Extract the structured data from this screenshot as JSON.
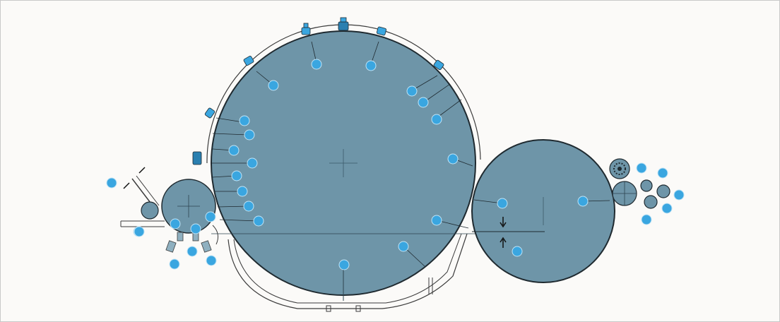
{
  "colors": {
    "drum_fill": "#6e95a8",
    "drum_stroke": "#1f2a30",
    "roller_fill": "#6e95a8",
    "badge": "#3aa6e0",
    "label_text": "#ffffff",
    "line": "#3b3b3b",
    "background": "#fbfaf8"
  },
  "components": {
    "main_drum": "main-drum",
    "transfer_drum": "transfer-drum",
    "supply_roller": "supply-roller",
    "small_rollers": "delivery-rollers"
  },
  "callouts": [
    {
      "id": "a",
      "label": ""
    },
    {
      "id": "b",
      "label": ""
    },
    {
      "id": "c",
      "label": ""
    },
    {
      "id": "d",
      "label": ""
    },
    {
      "id": "e",
      "label": ""
    },
    {
      "id": "f",
      "label": ""
    },
    {
      "id": "g",
      "label": ""
    },
    {
      "id": "h",
      "label": ""
    },
    {
      "id": "i",
      "label": ""
    },
    {
      "id": "j",
      "label": ""
    },
    {
      "id": "k",
      "label": ""
    },
    {
      "id": "l",
      "label": ""
    },
    {
      "id": "m",
      "label": ""
    },
    {
      "id": "n",
      "label": ""
    },
    {
      "id": "o",
      "label": ""
    },
    {
      "id": "p",
      "label": ""
    },
    {
      "id": "q",
      "label": ""
    },
    {
      "id": "r",
      "label": ""
    },
    {
      "id": "s",
      "label": ""
    },
    {
      "id": "t",
      "label": ""
    },
    {
      "id": "u",
      "label": ""
    },
    {
      "id": "v",
      "label": ""
    },
    {
      "id": "w",
      "label": ""
    },
    {
      "id": "x",
      "label": ""
    },
    {
      "id": "y",
      "label": ""
    },
    {
      "id": "z",
      "label": ""
    },
    {
      "id": "aa",
      "label": ""
    },
    {
      "id": "ab",
      "label": ""
    },
    {
      "id": "ac",
      "label": ""
    },
    {
      "id": "ad",
      "label": ""
    },
    {
      "id": "ae",
      "label": ""
    },
    {
      "id": "af",
      "label": ""
    },
    {
      "id": "ag",
      "label": ""
    },
    {
      "id": "ah",
      "label": ""
    },
    {
      "id": "ai",
      "label": ""
    },
    {
      "id": "aj",
      "label": ""
    },
    {
      "id": "ak",
      "label": ""
    },
    {
      "id": "al",
      "label": ""
    },
    {
      "id": "am",
      "label": ""
    },
    {
      "id": "an",
      "label": ""
    },
    {
      "id": "ao",
      "label": ""
    },
    {
      "id": "ap",
      "label": ""
    }
  ]
}
